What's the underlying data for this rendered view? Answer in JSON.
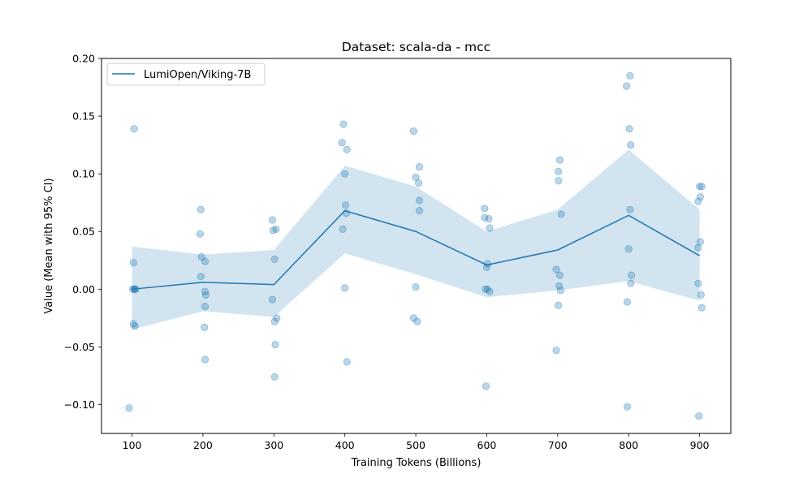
{
  "chart_data": {
    "type": "line",
    "title": "Dataset: scala-da - mcc",
    "xlabel": "Training Tokens (Billions)",
    "ylabel": "Value (Mean with 95% CI)",
    "xlim": [
      57,
      944
    ],
    "ylim": [
      -0.125,
      0.2
    ],
    "xticks": [
      100,
      200,
      300,
      400,
      500,
      600,
      700,
      800,
      900
    ],
    "yticks": [
      -0.1,
      -0.05,
      0.0,
      0.05,
      0.1,
      0.15,
      0.2
    ],
    "ytick_labels": [
      "−0.10",
      "−0.05",
      "0.00",
      "0.05",
      "0.10",
      "0.15",
      "0.20"
    ],
    "legend_position": "upper-left",
    "grid": false,
    "series": [
      {
        "name": "LumiOpen/Viking-7B",
        "color": "#1f77b4",
        "x": [
          100,
          200,
          300,
          400,
          500,
          600,
          700,
          800,
          900
        ],
        "mean": [
          0.0,
          0.006,
          0.004,
          0.068,
          0.05,
          0.021,
          0.034,
          0.064,
          0.029
        ],
        "ci_lower": [
          -0.035,
          -0.019,
          -0.024,
          0.031,
          0.013,
          -0.007,
          -0.001,
          0.007,
          -0.01
        ],
        "ci_upper": [
          0.037,
          0.03,
          0.034,
          0.107,
          0.089,
          0.05,
          0.069,
          0.121,
          0.069
        ]
      }
    ],
    "scatter": {
      "color": "#1f77b4",
      "opacity": 0.3,
      "points": [
        [
          103,
          0.139
        ],
        [
          102,
          0.023
        ],
        [
          101,
          0.0
        ],
        [
          103,
          0.0
        ],
        [
          105,
          0.0
        ],
        [
          104,
          0.0
        ],
        [
          102,
          -0.03
        ],
        [
          104,
          -0.032
        ],
        [
          96,
          -0.103
        ],
        [
          197,
          0.069
        ],
        [
          196,
          0.048
        ],
        [
          198,
          0.028
        ],
        [
          203,
          0.024
        ],
        [
          197,
          0.011
        ],
        [
          203,
          -0.002
        ],
        [
          204,
          -0.005
        ],
        [
          203,
          -0.015
        ],
        [
          202,
          -0.033
        ],
        [
          203,
          -0.061
        ],
        [
          298,
          0.06
        ],
        [
          303,
          0.052
        ],
        [
          299,
          0.051
        ],
        [
          301,
          0.026
        ],
        [
          298,
          -0.009
        ],
        [
          304,
          -0.025
        ],
        [
          301,
          -0.028
        ],
        [
          302,
          -0.048
        ],
        [
          301,
          -0.076
        ],
        [
          398,
          0.143
        ],
        [
          396,
          0.127
        ],
        [
          403,
          0.121
        ],
        [
          400,
          0.1
        ],
        [
          401,
          0.073
        ],
        [
          402,
          0.066
        ],
        [
          397,
          0.052
        ],
        [
          400,
          0.001
        ],
        [
          403,
          -0.063
        ],
        [
          497,
          0.137
        ],
        [
          505,
          0.106
        ],
        [
          500,
          0.097
        ],
        [
          504,
          0.092
        ],
        [
          505,
          0.077
        ],
        [
          505,
          0.068
        ],
        [
          500,
          0.002
        ],
        [
          497,
          -0.025
        ],
        [
          502,
          -0.028
        ],
        [
          597,
          0.07
        ],
        [
          597,
          0.062
        ],
        [
          603,
          0.061
        ],
        [
          604,
          0.053
        ],
        [
          601,
          0.022
        ],
        [
          600,
          0.019
        ],
        [
          598,
          0.0
        ],
        [
          601,
          0.0
        ],
        [
          604,
          -0.002
        ],
        [
          599,
          -0.084
        ],
        [
          703,
          0.112
        ],
        [
          701,
          0.102
        ],
        [
          701,
          0.094
        ],
        [
          705,
          0.065
        ],
        [
          698,
          0.017
        ],
        [
          703,
          0.012
        ],
        [
          702,
          0.003
        ],
        [
          704,
          -0.001
        ],
        [
          701,
          -0.014
        ],
        [
          698,
          -0.053
        ],
        [
          802,
          0.185
        ],
        [
          797,
          0.176
        ],
        [
          801,
          0.139
        ],
        [
          803,
          0.125
        ],
        [
          802,
          0.069
        ],
        [
          800,
          0.035
        ],
        [
          804,
          0.012
        ],
        [
          803,
          0.005
        ],
        [
          798,
          -0.011
        ],
        [
          798,
          -0.102
        ],
        [
          900,
          0.089
        ],
        [
          903,
          0.089
        ],
        [
          901,
          0.08
        ],
        [
          898,
          0.076
        ],
        [
          901,
          0.041
        ],
        [
          898,
          0.036
        ],
        [
          898,
          0.005
        ],
        [
          902,
          -0.005
        ],
        [
          903,
          -0.016
        ],
        [
          899,
          -0.11
        ]
      ]
    }
  }
}
